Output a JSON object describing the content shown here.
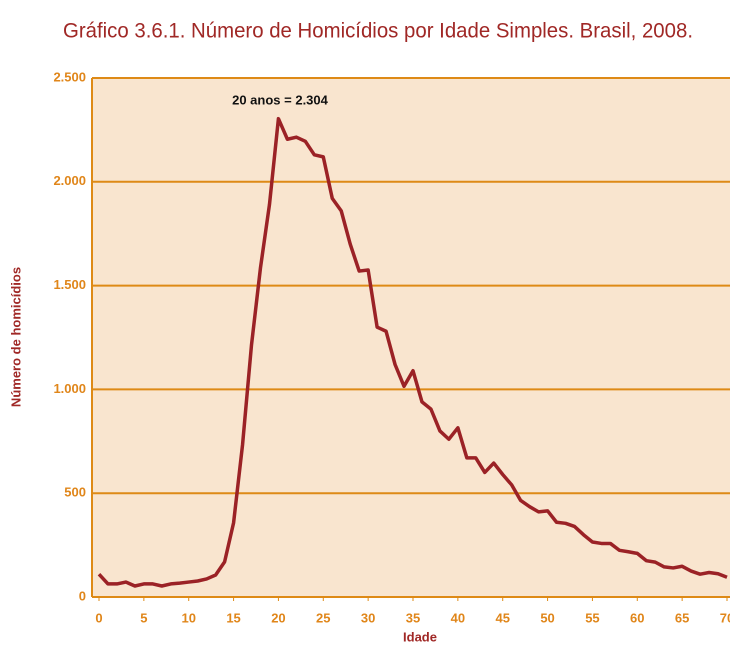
{
  "chart_data": {
    "type": "line",
    "title": "Gráfico 3.6.1. Número de Homicídios por Idade Simples. Brasil, 2008.",
    "xlabel": "Idade",
    "ylabel": "Número de homicídios",
    "annotation": "20 anos = 2.304",
    "x": [
      0,
      1,
      2,
      3,
      4,
      5,
      6,
      7,
      8,
      9,
      10,
      11,
      12,
      13,
      14,
      15,
      16,
      17,
      18,
      19,
      20,
      21,
      22,
      23,
      24,
      25,
      26,
      27,
      28,
      29,
      30,
      31,
      32,
      33,
      34,
      35,
      36,
      37,
      38,
      39,
      40,
      41,
      42,
      43,
      44,
      45,
      46,
      47,
      48,
      49,
      50,
      51,
      52,
      53,
      54,
      55,
      56,
      57,
      58,
      59,
      60,
      61,
      62,
      63,
      64,
      65,
      66,
      67,
      68,
      69,
      70
    ],
    "series": [
      {
        "name": "Homicídios",
        "color": "#9b2226",
        "values": [
          110,
          63,
          63,
          72,
          53,
          63,
          63,
          53,
          63,
          67,
          72,
          77,
          87,
          106,
          169,
          357,
          733,
          1215,
          1586,
          1890,
          2304,
          2205,
          2215,
          2195,
          2130,
          2120,
          1920,
          1860,
          1700,
          1570,
          1575,
          1300,
          1280,
          1120,
          1015,
          1090,
          940,
          905,
          800,
          760,
          815,
          670,
          670,
          600,
          645,
          590,
          540,
          465,
          435,
          410,
          415,
          360,
          355,
          340,
          300,
          265,
          258,
          258,
          225,
          218,
          210,
          175,
          168,
          145,
          140,
          148,
          125,
          110,
          118,
          112,
          95
        ]
      }
    ],
    "xlim": [
      0,
      70
    ],
    "xticks": [
      0,
      5,
      10,
      15,
      20,
      25,
      30,
      35,
      40,
      45,
      50,
      55,
      60,
      65,
      70
    ],
    "ylim": [
      0,
      2500
    ],
    "yticks": [
      0,
      500,
      {
        "value": 1000,
        "label": "1.000"
      },
      {
        "value": 1500,
        "label": "1.500"
      },
      {
        "value": 2000,
        "label": "2.000"
      },
      {
        "value": 2500,
        "label": "2.500"
      }
    ],
    "grid": true
  }
}
